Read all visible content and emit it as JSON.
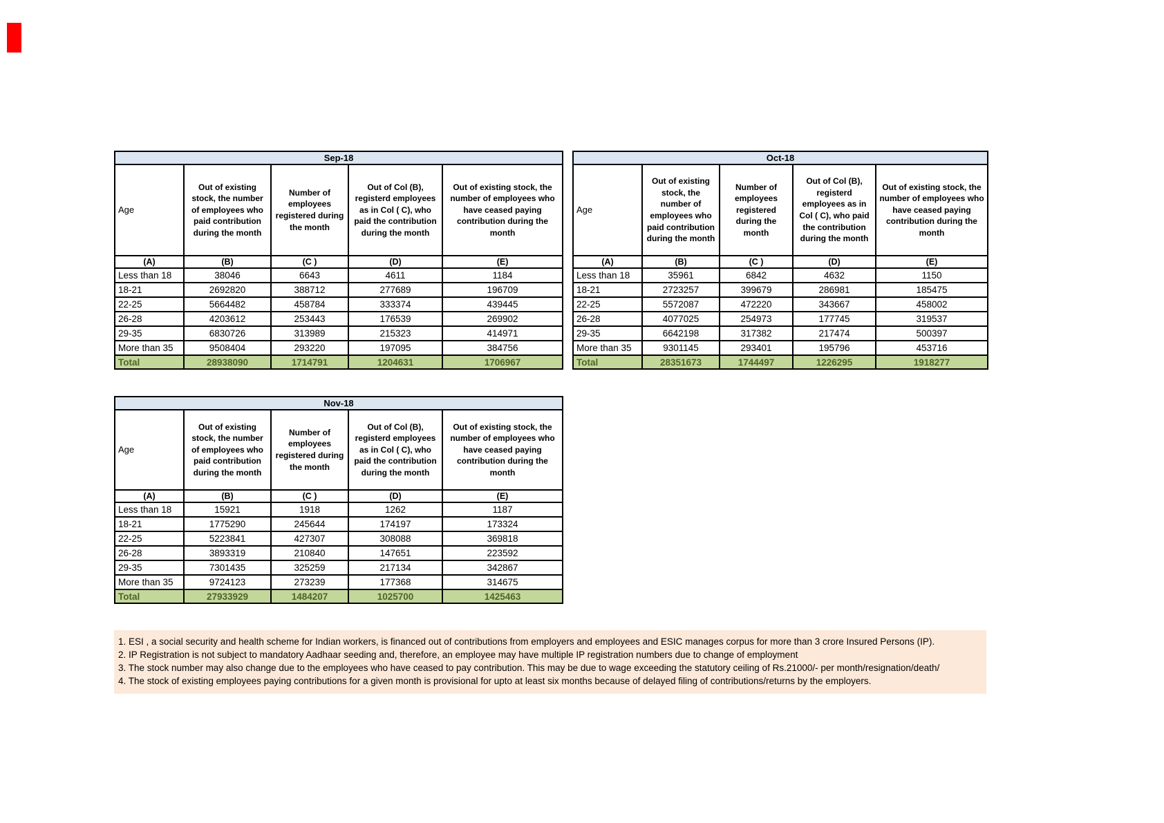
{
  "marker": {
    "color": "#FF0000"
  },
  "colors": {
    "title_bar": "#DCE6F1",
    "total_row_bg": "#C4D79B",
    "total_text": "#4F6228",
    "note_bg": "#FDE9D9",
    "marker": "#FF0000"
  },
  "columns": {
    "age_label": "Age",
    "col_b": "Out of existing stock, the number of employees who paid contribution during the month",
    "col_c": "Number of employees registered during the month",
    "col_d": "Out of Col (B), registerd employees as in Col ( C), who paid the contribution during the month",
    "col_e": "Out of existing stock, the number of  employees  who have ceased paying contribution during the month",
    "letters": [
      "(A)",
      "(B)",
      "(C )",
      "(D)",
      "(E)"
    ]
  },
  "tables": [
    {
      "month": "Sep-18",
      "rows": [
        [
          "Less than 18",
          "38046",
          "6643",
          "4611",
          "1184"
        ],
        [
          "18-21",
          "2692820",
          "388712",
          "277689",
          "196709"
        ],
        [
          "22-25",
          "5664482",
          "458784",
          "333374",
          "439445"
        ],
        [
          "26-28",
          "4203612",
          "253443",
          "176539",
          "269902"
        ],
        [
          "29-35",
          "6830726",
          "313989",
          "215323",
          "414971"
        ],
        [
          "More than 35",
          "9508404",
          "293220",
          "197095",
          "384756"
        ]
      ],
      "total": [
        "Total",
        "28938090",
        "1714791",
        "1204631",
        "1706967"
      ]
    },
    {
      "month": "Oct-18",
      "rows": [
        [
          "Less than 18",
          "35961",
          "6842",
          "4632",
          "1150"
        ],
        [
          "18-21",
          "2723257",
          "399679",
          "286981",
          "185475"
        ],
        [
          "22-25",
          "5572087",
          "472220",
          "343667",
          "458002"
        ],
        [
          "26-28",
          "4077025",
          "254973",
          "177745",
          "319537"
        ],
        [
          "29-35",
          "6642198",
          "317382",
          "217474",
          "500397"
        ],
        [
          "More than 35",
          "9301145",
          "293401",
          "195796",
          "453716"
        ]
      ],
      "total": [
        "Total",
        "28351673",
        "1744497",
        "1226295",
        "1918277"
      ]
    },
    {
      "month": "Nov-18",
      "rows": [
        [
          "Less than 18",
          "15921",
          "1918",
          "1262",
          "1187"
        ],
        [
          "18-21",
          "1775290",
          "245644",
          "174197",
          "173324"
        ],
        [
          "22-25",
          "5223841",
          "427307",
          "308088",
          "369818"
        ],
        [
          "26-28",
          "3893319",
          "210840",
          "147651",
          "223592"
        ],
        [
          "29-35",
          "7301435",
          "325259",
          "217134",
          "342867"
        ],
        [
          "More than 35",
          "9724123",
          "273239",
          "177368",
          "314675"
        ]
      ],
      "total": [
        "Total",
        "27933929",
        "1484207",
        "1025700",
        "1425463"
      ]
    }
  ],
  "footnotes": [
    "1. ESI , a social security and health scheme for Indian workers, is financed out of contributions from employers and employees and ESIC manages corpus for more than 3 crore Insured Persons (IP).",
    "2. IP Registration is not subject to mandatory Aadhaar seeding and, therefore, an employee may have multiple IP registration numbers due to change of employment",
    "3. The stock number may also change due to the employees who have ceased to pay contribution. This may  be due to wage exceeding the statutory ceiling of  Rs.21000/- per month/resignation/death/",
    "4. The stock of existing employees paying contributions for a given month is provisional for upto at least six months because of delayed filing of contributions/returns by the employers."
  ]
}
